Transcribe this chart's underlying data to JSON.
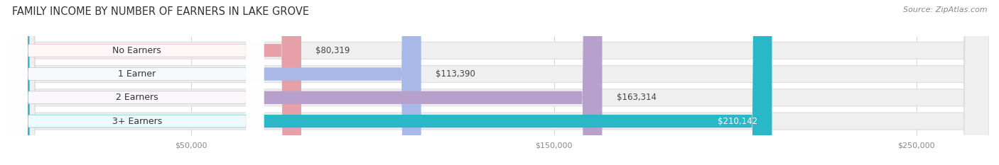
{
  "title": "FAMILY INCOME BY NUMBER OF EARNERS IN LAKE GROVE",
  "source": "Source: ZipAtlas.com",
  "categories": [
    "No Earners",
    "1 Earner",
    "2 Earners",
    "3+ Earners"
  ],
  "values": [
    80319,
    113390,
    163314,
    210142
  ],
  "bar_colors": [
    "#e8a0a8",
    "#a8b8e8",
    "#b8a0cc",
    "#2ab8c8"
  ],
  "label_colors": [
    "#444444",
    "#444444",
    "#444444",
    "#ffffff"
  ],
  "value_labels": [
    "$80,319",
    "$113,390",
    "$163,314",
    "$210,142"
  ],
  "bar_bg_color": "#efefef",
  "bar_border_color": "#dddddd",
  "bg_color": "#ffffff",
  "xmin": 0,
  "xmax": 270000,
  "xticks": [
    50000,
    150000,
    250000
  ],
  "xtick_labels": [
    "$50,000",
    "$150,000",
    "$250,000"
  ],
  "title_fontsize": 10.5,
  "label_fontsize": 9,
  "value_fontsize": 8.5,
  "source_fontsize": 8,
  "tick_fontsize": 8
}
